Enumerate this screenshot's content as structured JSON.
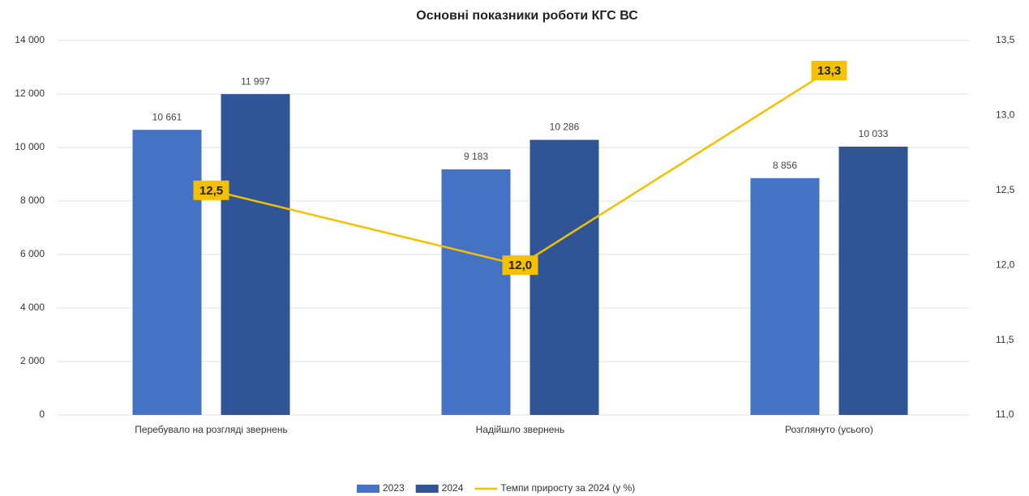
{
  "chart_data": {
    "type": "bar",
    "title": "Основні показники роботи КГС ВС",
    "categories": [
      "Перебувало на розгляді звернень",
      "Надійшло звернень",
      "Розглянуто (усього)"
    ],
    "series": [
      {
        "name": "2023",
        "type": "bar",
        "color": "#4472c4",
        "values": [
          10661,
          9183,
          8856
        ],
        "value_labels": [
          "10 661",
          "9 183",
          "8 856"
        ]
      },
      {
        "name": "2024",
        "type": "bar",
        "color": "#2f5597",
        "values": [
          11997,
          10286,
          10033
        ],
        "value_labels": [
          "11 997",
          "10 286",
          "10 033"
        ]
      },
      {
        "name": "Темпи приросту за 2024 (у %)",
        "type": "line",
        "axis": "y2",
        "color": "#f5c000",
        "values": [
          12.5,
          12.0,
          13.3
        ],
        "value_labels": [
          "12,5",
          "12,0",
          "13,3"
        ]
      }
    ],
    "ylim": [
      0,
      14000
    ],
    "yticks": [
      0,
      {
        "value": 2000,
        "label": "2 000"
      },
      {
        "value": 4000,
        "label": "4 000"
      },
      {
        "value": 6000,
        "label": "6 000"
      },
      {
        "value": 8000,
        "label": "8 000"
      },
      {
        "value": 10000,
        "label": "10 000"
      },
      {
        "value": 12000,
        "label": "12 000"
      },
      {
        "value": 14000,
        "label": "14 000"
      }
    ],
    "y2lim": [
      11,
      13.5
    ],
    "y2ticks": [
      {
        "value": 11,
        "label": "11,0"
      },
      {
        "value": 11.5,
        "label": "11,5"
      },
      {
        "value": 12,
        "label": "12,0"
      },
      {
        "value": 12.5,
        "label": "12,5"
      },
      {
        "value": 13,
        "label": "13,0"
      },
      {
        "value": 13.5,
        "label": "13,5"
      }
    ],
    "grid": true,
    "legend": "bottom"
  }
}
